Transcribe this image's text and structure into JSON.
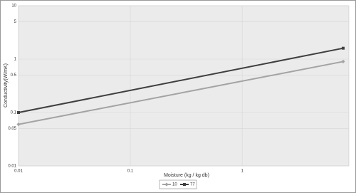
{
  "chart_data": {
    "type": "line",
    "x_label": "Moisture (kg / kg db)",
    "y_label": "Conductivity(W/mK)",
    "x": [
      0.01,
      8
    ],
    "series": [
      {
        "name": "10",
        "color": "#a3a3a3",
        "marker": "diamond",
        "values": [
          0.06,
          0.9
        ]
      },
      {
        "name": "77",
        "color": "#3f3f3f",
        "marker": "square",
        "values": [
          0.1,
          1.6
        ]
      }
    ],
    "xscale": "log",
    "yscale": "log",
    "xlim": [
      0.01,
      9
    ],
    "ylim": [
      0.01,
      10
    ],
    "xticks": [
      0.01,
      0.1,
      1
    ],
    "yticks": [
      0.01,
      0.05,
      0.1,
      0.5,
      1,
      5,
      10
    ],
    "grid": true,
    "legend": "bottom"
  }
}
